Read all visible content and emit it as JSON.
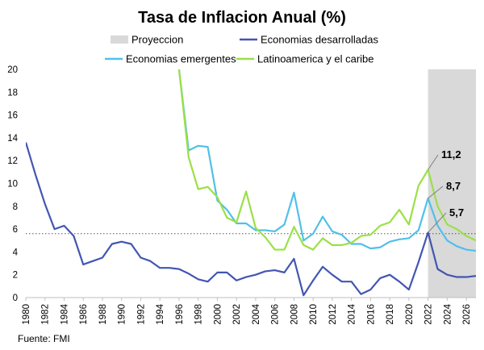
{
  "chart_data": {
    "type": "line",
    "title": "Tasa de Inflacion Anual (%)",
    "source": "Fuente:  FMI",
    "ylim": [
      0,
      20
    ],
    "yticks": [
      0,
      2,
      4,
      6,
      8,
      10,
      12,
      14,
      16,
      18,
      20
    ],
    "xlim": [
      1980,
      2027
    ],
    "xticks": [
      1980,
      1982,
      1984,
      1986,
      1988,
      1990,
      1992,
      1994,
      1996,
      1998,
      2000,
      2002,
      2004,
      2006,
      2008,
      2010,
      2012,
      2014,
      2016,
      2018,
      2020,
      2022,
      2024,
      2026
    ],
    "grid": false,
    "legend_position": "top",
    "projection": {
      "label": "Proyeccion",
      "start": 2022,
      "end": 2027,
      "color": "#d9d9d9"
    },
    "reference_line": {
      "y": 5.6,
      "style": "dotted"
    },
    "series": [
      {
        "name": "Economias desarrolladas",
        "color": "#4256b2",
        "x": [
          1980,
          1981,
          1982,
          1983,
          1984,
          1985,
          1986,
          1987,
          1988,
          1989,
          1990,
          1991,
          1992,
          1993,
          1994,
          1995,
          1996,
          1997,
          1998,
          1999,
          2000,
          2001,
          2002,
          2003,
          2004,
          2005,
          2006,
          2007,
          2008,
          2009,
          2010,
          2011,
          2012,
          2013,
          2014,
          2015,
          2016,
          2017,
          2018,
          2019,
          2020,
          2021,
          2022,
          2023,
          2024,
          2025,
          2026,
          2027
        ],
        "y": [
          13.6,
          10.8,
          8.2,
          6.0,
          6.3,
          5.4,
          2.9,
          3.2,
          3.5,
          4.7,
          4.9,
          4.7,
          3.5,
          3.2,
          2.6,
          2.6,
          2.5,
          2.1,
          1.6,
          1.4,
          2.2,
          2.2,
          1.5,
          1.8,
          2.0,
          2.3,
          2.4,
          2.2,
          3.4,
          0.2,
          1.5,
          2.7,
          2.0,
          1.4,
          1.4,
          0.3,
          0.7,
          1.7,
          2.0,
          1.4,
          0.7,
          3.1,
          5.7,
          2.5,
          2.0,
          1.8,
          1.8,
          1.9
        ]
      },
      {
        "name": "Economias emergentes",
        "color": "#51c0e8",
        "x": [
          1996,
          1997,
          1998,
          1999,
          2000,
          2001,
          2002,
          2003,
          2004,
          2005,
          2006,
          2007,
          2008,
          2009,
          2010,
          2011,
          2012,
          2013,
          2014,
          2015,
          2016,
          2017,
          2018,
          2019,
          2020,
          2021,
          2022,
          2023,
          2024,
          2025,
          2026,
          2027
        ],
        "y": [
          20.0,
          12.9,
          13.3,
          13.2,
          8.5,
          7.7,
          6.5,
          6.5,
          5.9,
          5.9,
          5.8,
          6.4,
          9.2,
          5.0,
          5.6,
          7.1,
          5.8,
          5.5,
          4.7,
          4.7,
          4.3,
          4.4,
          4.9,
          5.1,
          5.2,
          5.9,
          8.7,
          6.3,
          5.0,
          4.5,
          4.2,
          4.1
        ]
      },
      {
        "name": "Latinoamerica y el caribe",
        "color": "#9be046",
        "x": [
          1996,
          1997,
          1998,
          1999,
          2000,
          2001,
          2002,
          2003,
          2004,
          2005,
          2006,
          2007,
          2008,
          2009,
          2010,
          2011,
          2012,
          2013,
          2014,
          2015,
          2016,
          2017,
          2018,
          2019,
          2020,
          2021,
          2022,
          2023,
          2024,
          2025,
          2026,
          2027
        ],
        "y": [
          20.0,
          12.3,
          9.5,
          9.7,
          8.8,
          7.0,
          6.6,
          9.3,
          6.1,
          5.3,
          4.2,
          4.2,
          6.2,
          4.6,
          4.2,
          5.2,
          4.6,
          4.6,
          4.8,
          5.4,
          5.5,
          6.3,
          6.6,
          7.7,
          6.4,
          9.8,
          11.2,
          8.0,
          6.4,
          6.0,
          5.4,
          5.0
        ]
      }
    ],
    "annotations": [
      {
        "label": "11,2",
        "x": 2022,
        "y": 11.2
      },
      {
        "label": "8,7",
        "x": 2022,
        "y": 8.7
      },
      {
        "label": "5,7",
        "x": 2022,
        "y": 5.7
      }
    ]
  }
}
